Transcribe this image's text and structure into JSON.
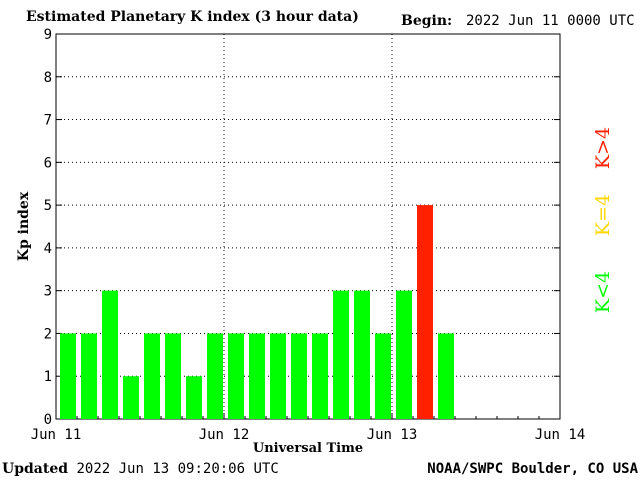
{
  "header": {
    "title": "Estimated Planetary K index (3 hour data)",
    "begin_label": "Begin:",
    "begin_value": "2022 Jun 11 0000 UTC"
  },
  "footer": {
    "updated_label": "Updated",
    "updated_value": "2022 Jun 13 09:20:06 UTC",
    "credit": "NOAA/SWPC Boulder, CO USA"
  },
  "legend": {
    "low": {
      "text": "K<4",
      "color": "#00ff00"
    },
    "mid": {
      "text": "K=4",
      "color": "#ffd700"
    },
    "high": {
      "text": "K>4",
      "color": "#ff2000"
    }
  },
  "chart_data": {
    "type": "bar",
    "title": "Estimated Planetary K index (3 hour data)",
    "xlabel": "Universal Time",
    "ylabel": "Kp index",
    "ylim": [
      0,
      9
    ],
    "yticks": [
      0,
      1,
      2,
      3,
      4,
      5,
      6,
      7,
      8,
      9
    ],
    "xticks": [
      "Jun 11",
      "Jun 12",
      "Jun 13",
      "Jun 14"
    ],
    "bins_per_day": 8,
    "total_bins": 24,
    "grid": "dotted",
    "values": [
      2,
      2,
      3,
      1,
      2,
      2,
      1,
      2,
      2,
      2,
      2,
      2,
      2,
      3,
      3,
      2,
      3,
      5,
      2
    ],
    "colors": {
      "below_4": "#00ff00",
      "equal_4": "#ffd700",
      "above_4": "#ff2000"
    }
  }
}
